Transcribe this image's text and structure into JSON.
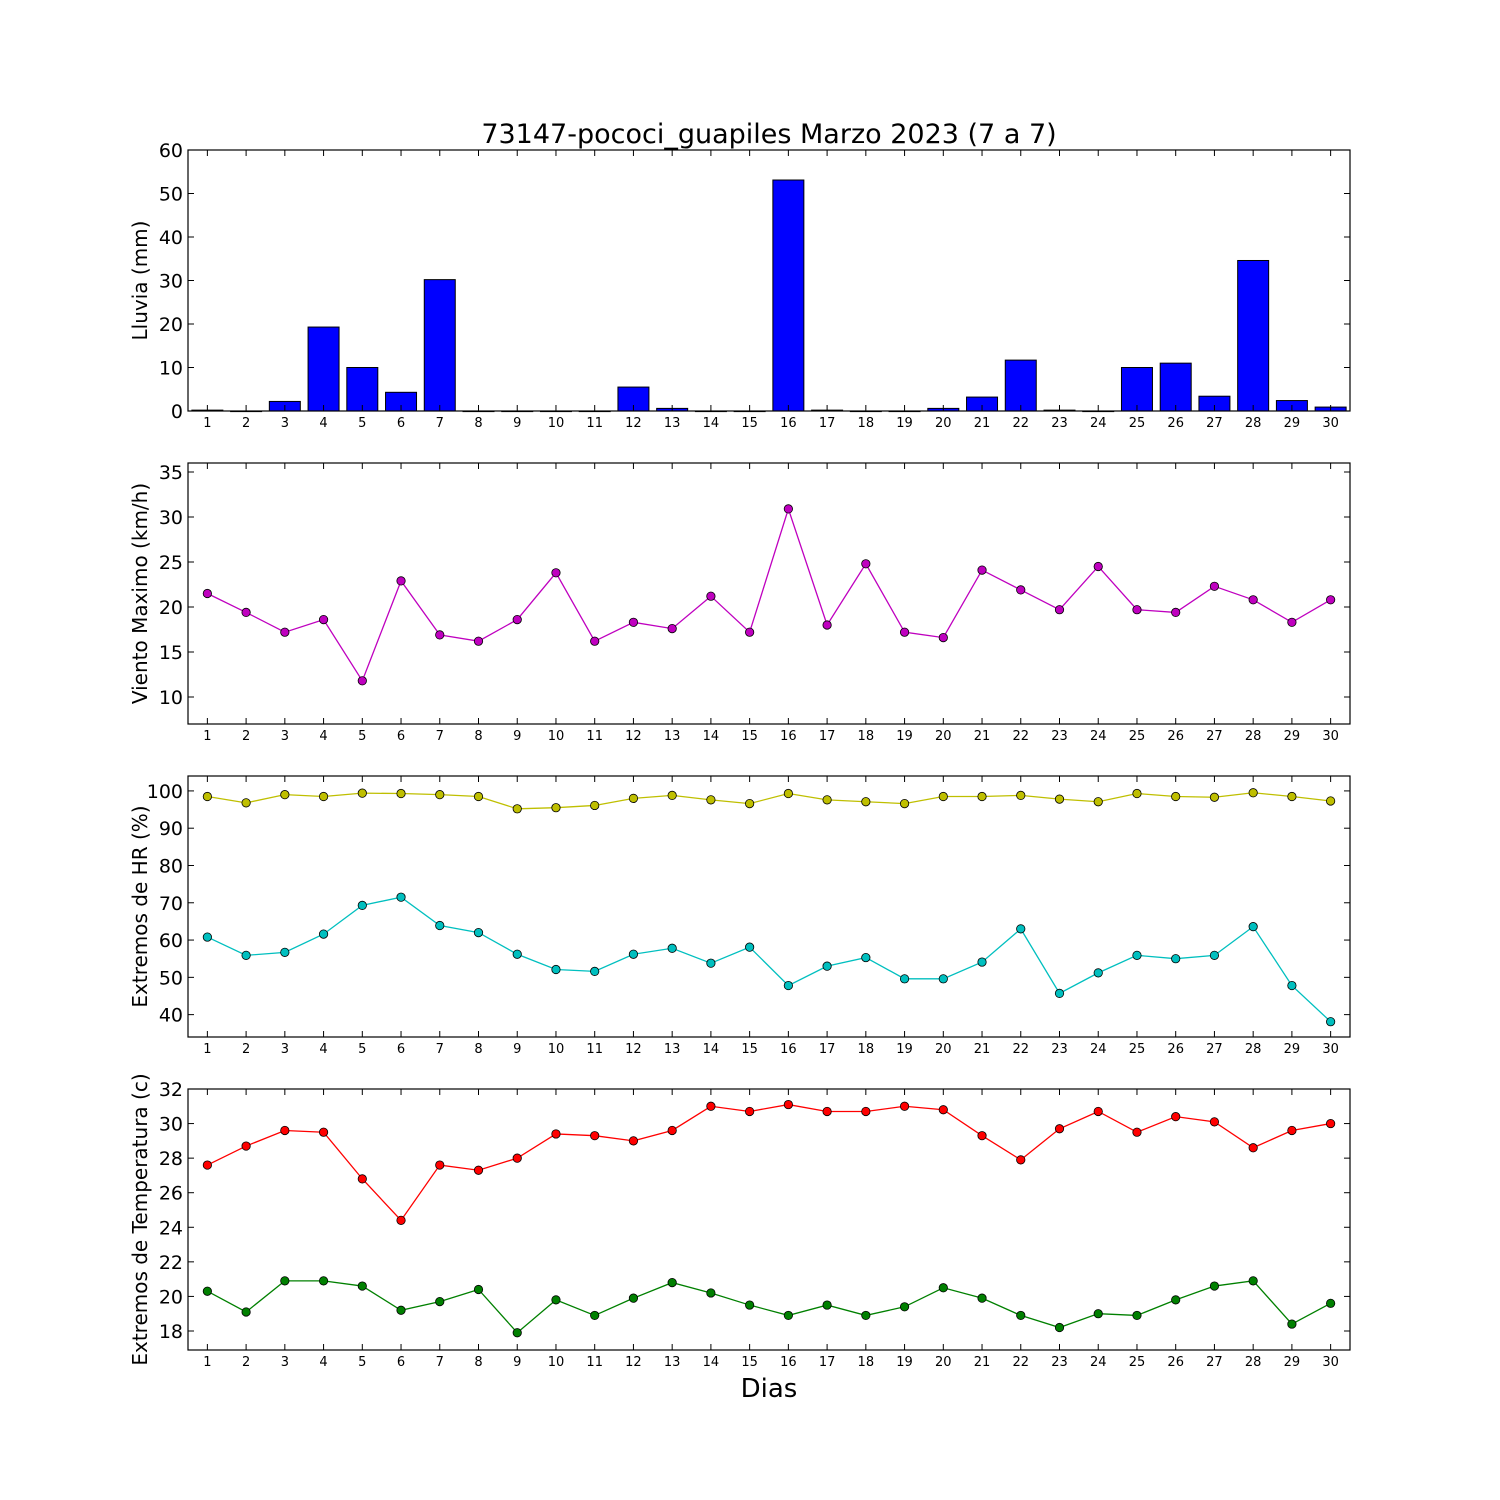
{
  "figure": {
    "title": "73147-pococi_guapiles Marzo 2023  (7 a 7)",
    "xlabel": "Dias"
  },
  "chart_data": [
    {
      "type": "bar",
      "ylabel": "Lluvia (mm)",
      "ylim": [
        0,
        60
      ],
      "yticks": [
        0,
        10,
        20,
        30,
        40,
        50,
        60
      ],
      "x": [
        1,
        2,
        3,
        4,
        5,
        6,
        7,
        8,
        9,
        10,
        11,
        12,
        13,
        14,
        15,
        16,
        17,
        18,
        19,
        20,
        21,
        22,
        23,
        24,
        25,
        26,
        27,
        28,
        29,
        30
      ],
      "series": [
        {
          "color": "#0000ff",
          "values": [
            0.2,
            0,
            2.2,
            19.3,
            10.0,
            4.3,
            30.2,
            0,
            0,
            0,
            0,
            5.5,
            0.6,
            0,
            0,
            53.1,
            0.2,
            0,
            0,
            0.6,
            3.2,
            11.7,
            0.2,
            0,
            10.0,
            11.0,
            3.4,
            34.6,
            2.4,
            0.9
          ]
        }
      ],
      "grid": false
    },
    {
      "type": "line",
      "ylabel": "Viento Maximo (km/h)",
      "ylim": [
        7,
        36
      ],
      "yticks": [
        10,
        15,
        20,
        25,
        30,
        35
      ],
      "x": [
        1,
        2,
        3,
        4,
        5,
        6,
        7,
        8,
        9,
        10,
        11,
        12,
        13,
        14,
        15,
        16,
        17,
        18,
        19,
        20,
        21,
        22,
        23,
        24,
        25,
        26,
        27,
        28,
        29,
        30
      ],
      "series": [
        {
          "color": "#bf00bf",
          "values": [
            21.5,
            19.4,
            17.2,
            18.6,
            11.8,
            22.9,
            16.9,
            16.2,
            18.6,
            23.8,
            16.2,
            18.3,
            17.6,
            21.2,
            17.2,
            30.9,
            18.0,
            24.8,
            17.2,
            16.6,
            24.1,
            21.9,
            19.7,
            24.5,
            19.7,
            19.4,
            22.3,
            20.8,
            18.3,
            20.8
          ]
        }
      ],
      "grid": false
    },
    {
      "type": "line",
      "ylabel": "Extremos de HR (%)",
      "ylim": [
        34,
        104
      ],
      "yticks": [
        40,
        50,
        60,
        70,
        80,
        90,
        100
      ],
      "x": [
        1,
        2,
        3,
        4,
        5,
        6,
        7,
        8,
        9,
        10,
        11,
        12,
        13,
        14,
        15,
        16,
        17,
        18,
        19,
        20,
        21,
        22,
        23,
        24,
        25,
        26,
        27,
        28,
        29,
        30
      ],
      "series": [
        {
          "color": "#bfbf00",
          "values": [
            98.5,
            96.8,
            99.0,
            98.5,
            99.4,
            99.3,
            99.0,
            98.5,
            95.2,
            95.5,
            96.1,
            98.0,
            98.8,
            97.6,
            96.6,
            99.3,
            97.6,
            97.1,
            96.6,
            98.5,
            98.5,
            98.8,
            97.8,
            97.1,
            99.3,
            98.5,
            98.3,
            99.5,
            98.5,
            97.3
          ]
        },
        {
          "color": "#00bfbf",
          "values": [
            60.8,
            55.9,
            56.7,
            61.6,
            69.3,
            71.5,
            63.9,
            62.0,
            56.2,
            52.1,
            51.6,
            56.2,
            57.8,
            53.8,
            58.1,
            47.8,
            53.0,
            55.3,
            49.6,
            49.6,
            54.1,
            63.0,
            45.7,
            51.2,
            55.9,
            55.0,
            55.9,
            63.6,
            47.8,
            38.1
          ]
        }
      ],
      "grid": false
    },
    {
      "type": "line",
      "ylabel": "Extremos de Temperatura (c)",
      "ylim": [
        16.9,
        32
      ],
      "yticks": [
        18,
        20,
        22,
        24,
        26,
        28,
        30,
        32
      ],
      "x": [
        1,
        2,
        3,
        4,
        5,
        6,
        7,
        8,
        9,
        10,
        11,
        12,
        13,
        14,
        15,
        16,
        17,
        18,
        19,
        20,
        21,
        22,
        23,
        24,
        25,
        26,
        27,
        28,
        29,
        30
      ],
      "series": [
        {
          "color": "#ff0000",
          "values": [
            27.6,
            28.7,
            29.6,
            29.5,
            26.8,
            24.4,
            27.6,
            27.3,
            28.0,
            29.4,
            29.3,
            29.0,
            29.6,
            31.0,
            30.7,
            31.1,
            30.7,
            30.7,
            31.0,
            30.8,
            29.3,
            27.9,
            29.7,
            30.7,
            29.5,
            30.4,
            30.1,
            28.6,
            29.6,
            30.0
          ]
        },
        {
          "color": "#008000",
          "values": [
            20.3,
            19.1,
            20.9,
            20.9,
            20.6,
            19.2,
            19.7,
            20.4,
            17.9,
            19.8,
            18.9,
            19.9,
            20.8,
            20.2,
            19.5,
            18.9,
            19.5,
            18.9,
            19.4,
            20.5,
            19.9,
            18.9,
            18.2,
            19.0,
            18.9,
            19.8,
            20.6,
            20.9,
            18.4,
            19.6
          ]
        }
      ],
      "grid": false
    }
  ]
}
